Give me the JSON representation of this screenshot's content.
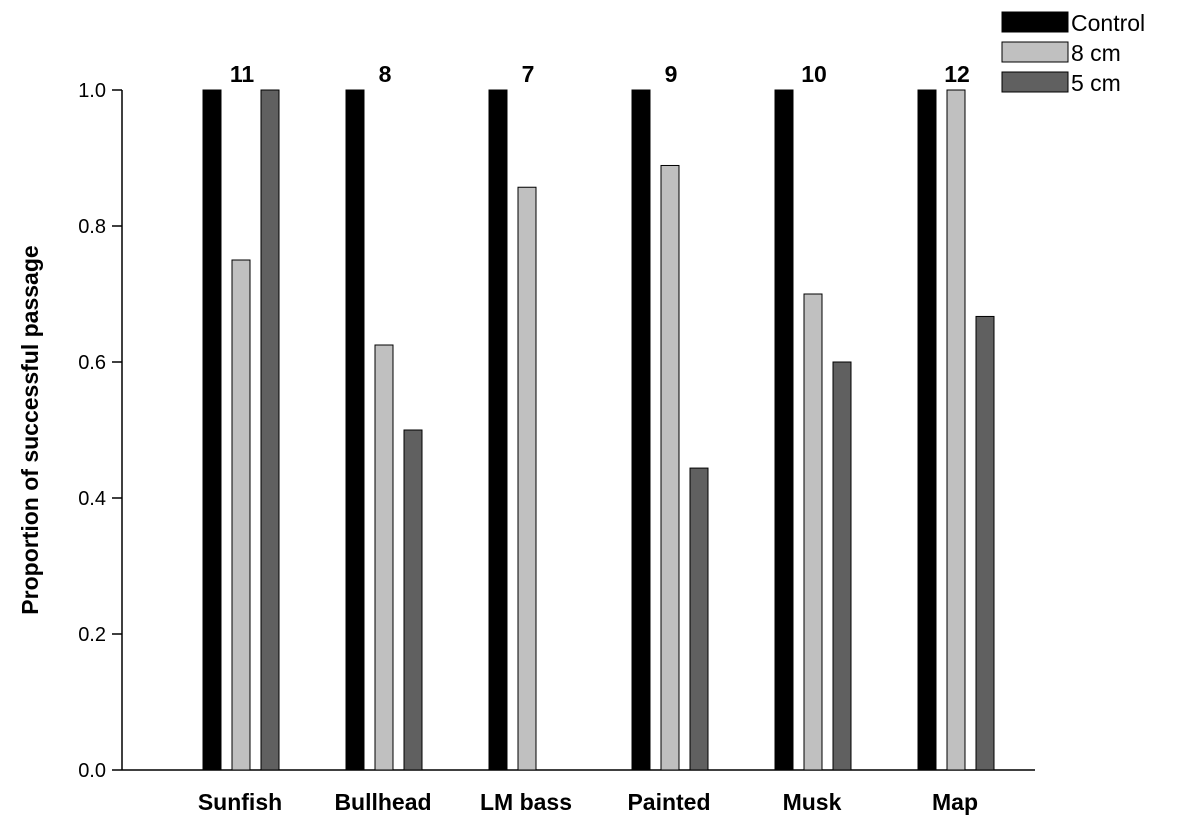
{
  "chart_data": {
    "type": "bar",
    "title": "",
    "xlabel": "",
    "ylabel": "Proportion of successful passage",
    "ylim": [
      0,
      1.0
    ],
    "yticks": [
      0.0,
      0.2,
      0.4,
      0.6,
      0.8,
      1.0
    ],
    "ytick_labels": [
      "0.0",
      "0.2",
      "0.4",
      "0.6",
      "0.8",
      "1.0"
    ],
    "categories": [
      "Sunfish",
      "Bullhead",
      "LM bass",
      "Painted",
      "Musk",
      "Map"
    ],
    "sample_sizes": [
      "11",
      "8",
      "7",
      "9",
      "10",
      "12"
    ],
    "series": [
      {
        "name": "Control",
        "color": "#000000",
        "values": [
          1.0,
          1.0,
          1.0,
          1.0,
          1.0,
          1.0
        ]
      },
      {
        "name": "8 cm",
        "color": "#c0c0c0",
        "values": [
          0.75,
          0.625,
          0.857,
          0.889,
          0.7,
          1.0
        ]
      },
      {
        "name": "5 cm",
        "color": "#606060",
        "values": [
          1.0,
          0.5,
          0,
          0.444,
          0.6,
          0.667
        ]
      }
    ],
    "legend_position": "top-right",
    "grid": false
  }
}
